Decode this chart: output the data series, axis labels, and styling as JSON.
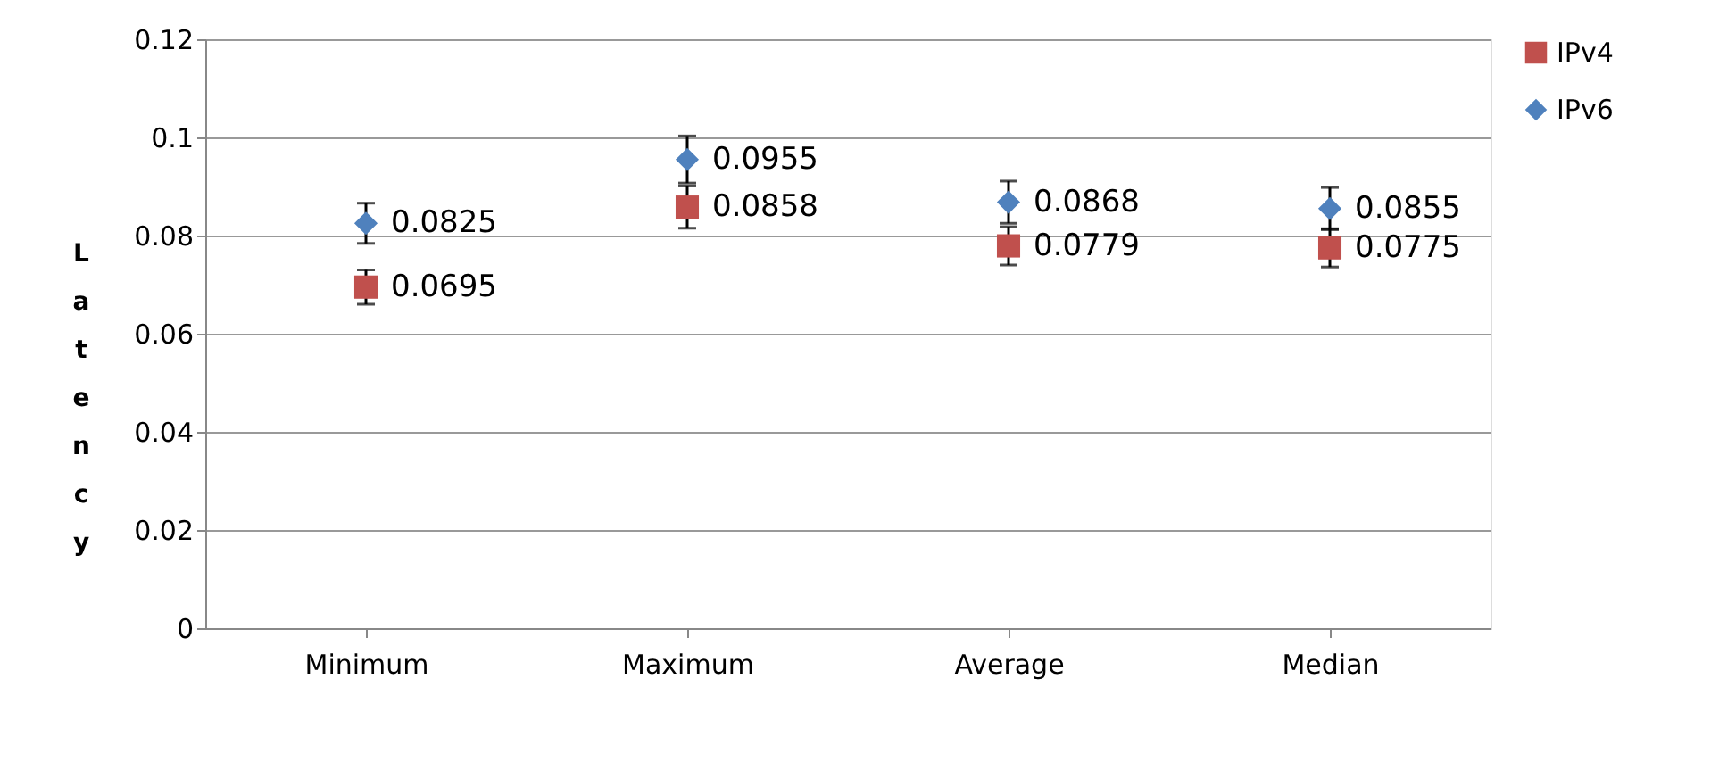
{
  "chart_data": {
    "type": "scatter",
    "ylabel": "Latency",
    "categories": [
      "Minimum",
      "Maximum",
      "Average",
      "Median"
    ],
    "series": [
      {
        "name": "IPv4",
        "color": "#c0504d",
        "marker": "square",
        "values": [
          0.0695,
          0.0858,
          0.0779,
          0.0775
        ],
        "errors": [
          0.0035,
          0.0043,
          0.0039,
          0.0039
        ]
      },
      {
        "name": "IPv6",
        "color": "#4f81bd",
        "marker": "diamond",
        "values": [
          0.0825,
          0.0955,
          0.0868,
          0.0855
        ],
        "errors": [
          0.0041,
          0.0048,
          0.0043,
          0.0043
        ]
      }
    ],
    "ylim": [
      0,
      0.12
    ],
    "yticks": [
      0,
      0.02,
      0.04,
      0.06,
      0.08,
      0.1,
      0.12
    ],
    "grid": "y",
    "legend": "right",
    "data_labels": true
  }
}
